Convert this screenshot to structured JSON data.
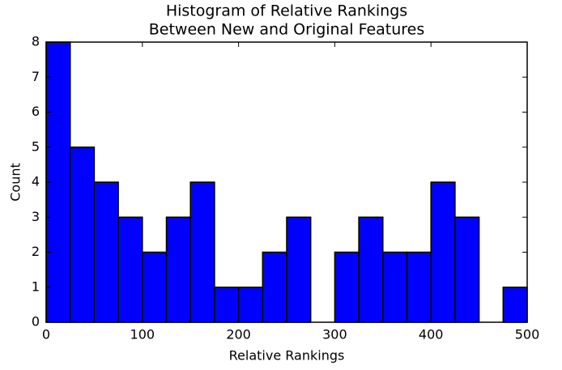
{
  "chart_data": {
    "type": "histogram",
    "title": [
      "Histogram of Relative Rankings",
      "Between New and Original Features"
    ],
    "xlabel": "Relative Rankings",
    "ylabel": "Count",
    "bins": [
      0,
      25,
      50,
      75,
      100,
      125,
      150,
      175,
      200,
      225,
      250,
      275,
      300,
      325,
      350,
      375,
      400,
      425,
      450,
      475,
      500
    ],
    "values": [
      8,
      5,
      4,
      3,
      2,
      3,
      4,
      1,
      1,
      2,
      3,
      0,
      2,
      3,
      2,
      2,
      4,
      3,
      0,
      1
    ],
    "color": "#0000ff",
    "xlim": [
      0,
      500
    ],
    "xticks": [
      0,
      100,
      200,
      300,
      400,
      500
    ],
    "ylim": [
      0,
      8
    ],
    "yticks": [
      0,
      1,
      2,
      3,
      4,
      5,
      6,
      7,
      8
    ]
  }
}
